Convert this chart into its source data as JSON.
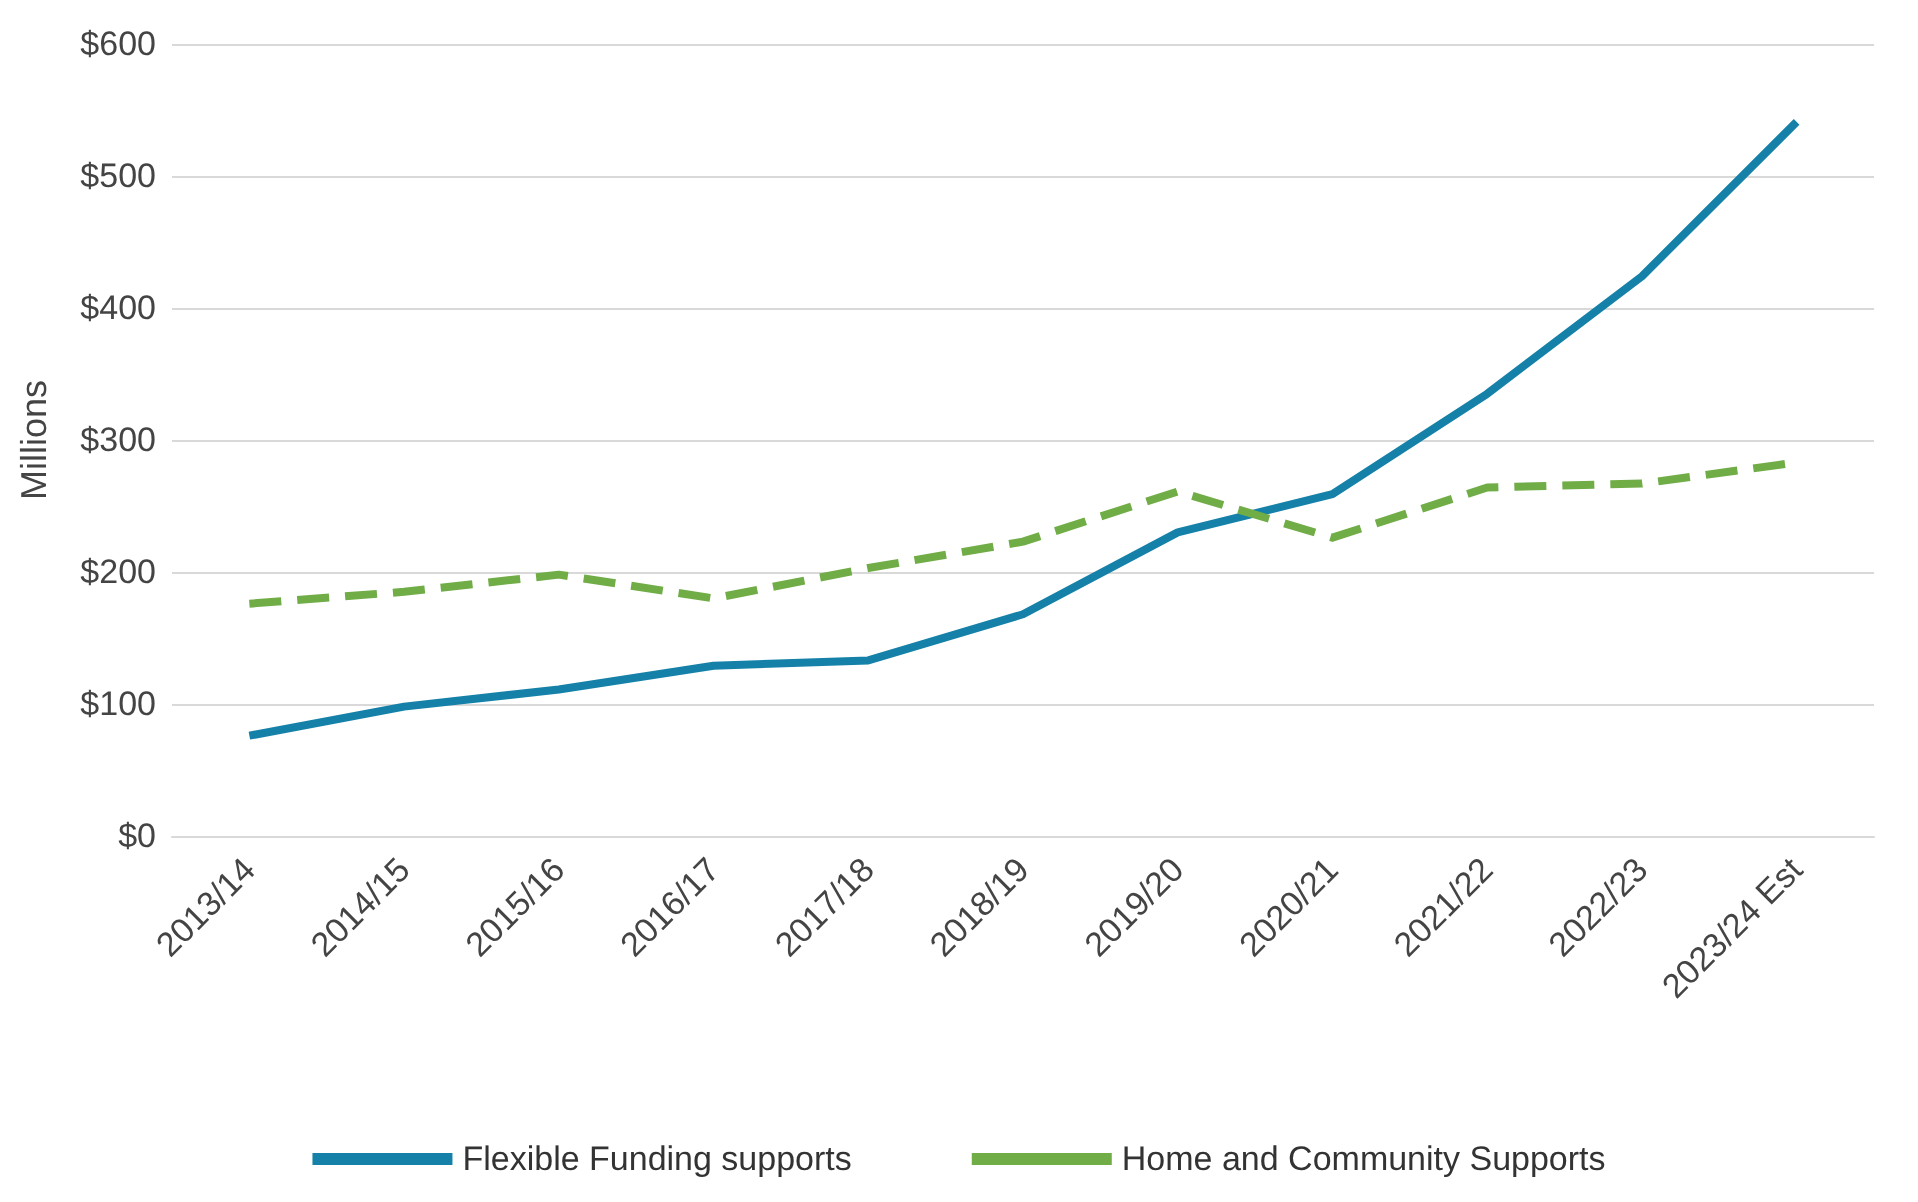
{
  "chart_data": {
    "type": "line",
    "ylabel": "Millions",
    "categories": [
      "2013/14",
      "2014/15",
      "2015/16",
      "2016/17",
      "2017/18",
      "2018/19",
      "2019/20",
      "2020/21",
      "2021/22",
      "2022/23",
      "2023/24 Est"
    ],
    "series": [
      {
        "name": "Flexible Funding supports",
        "color": "#1581a8",
        "line_style": "solid",
        "values": [
          76,
          98,
          111,
          129,
          133,
          168,
          230,
          259,
          335,
          424,
          541
        ]
      },
      {
        "name": "Home and Community Supports",
        "color": "#70ad47",
        "line_style": "dashed",
        "values": [
          176,
          185,
          198,
          180,
          203,
          223,
          261,
          226,
          264,
          267,
          283
        ]
      }
    ],
    "ylim": [
      0,
      600
    ],
    "yticks": [
      {
        "value": 0,
        "label": "$0"
      },
      {
        "value": 100,
        "label": "$100"
      },
      {
        "value": 200,
        "label": "$200"
      },
      {
        "value": 300,
        "label": "$300"
      },
      {
        "value": 400,
        "label": "$400"
      },
      {
        "value": 500,
        "label": "$500"
      },
      {
        "value": 600,
        "label": "$600"
      }
    ],
    "grid": "y",
    "legend": "bottom",
    "marker": "none"
  }
}
